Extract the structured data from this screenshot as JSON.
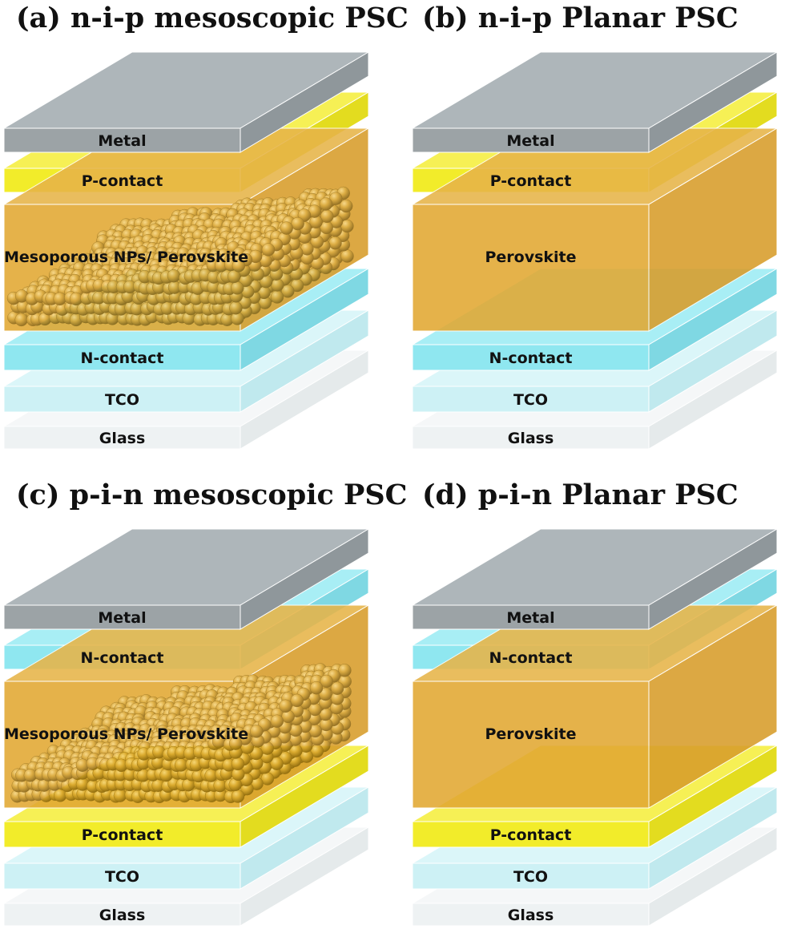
{
  "panels": [
    {
      "id": "a",
      "title": "(a) n-i-p mesoscopic PSC",
      "mesoporous": true,
      "layers": [
        {
          "label": "Metal",
          "kind": "metal"
        },
        {
          "label": "P-contact",
          "kind": "p"
        },
        {
          "label": "Mesoporous NPs/ Perovskite",
          "kind": "perovskite"
        },
        {
          "label": "N-contact",
          "kind": "n"
        },
        {
          "label": "TCO",
          "kind": "tco"
        },
        {
          "label": "Glass",
          "kind": "glass"
        }
      ]
    },
    {
      "id": "b",
      "title": "(b) n-i-p Planar PSC",
      "mesoporous": false,
      "layers": [
        {
          "label": "Metal",
          "kind": "metal"
        },
        {
          "label": "P-contact",
          "kind": "p"
        },
        {
          "label": "Perovskite",
          "kind": "perovskite"
        },
        {
          "label": "N-contact",
          "kind": "n"
        },
        {
          "label": "TCO",
          "kind": "tco"
        },
        {
          "label": "Glass",
          "kind": "glass"
        }
      ]
    },
    {
      "id": "c",
      "title": "(c) p-i-n mesoscopic PSC",
      "mesoporous": true,
      "layers": [
        {
          "label": "Metal",
          "kind": "metal"
        },
        {
          "label": "N-contact",
          "kind": "n"
        },
        {
          "label": "Mesoporous NPs/ Perovskite",
          "kind": "perovskite"
        },
        {
          "label": "P-contact",
          "kind": "p"
        },
        {
          "label": "TCO",
          "kind": "tco"
        },
        {
          "label": "Glass",
          "kind": "glass"
        }
      ]
    },
    {
      "id": "d",
      "title": "(d) p-i-n Planar PSC",
      "mesoporous": false,
      "layers": [
        {
          "label": "Metal",
          "kind": "metal"
        },
        {
          "label": "N-contact",
          "kind": "n"
        },
        {
          "label": "Perovskite",
          "kind": "perovskite"
        },
        {
          "label": "P-contact",
          "kind": "p"
        },
        {
          "label": "TCO",
          "kind": "tco"
        },
        {
          "label": "Glass",
          "kind": "glass"
        }
      ]
    }
  ],
  "colors": {
    "metal": {
      "front": "#9ca3a6",
      "top": "#aeb6ba",
      "side": "#8f979b"
    },
    "p": {
      "front": "#f2ec2a",
      "top": "#f6f055",
      "side": "#e3dc1f"
    },
    "n": {
      "front": "#8fe7f0",
      "top": "#a8eef5",
      "side": "#7fd8e3"
    },
    "tco": {
      "front": "#cdf1f5",
      "top": "#dbf6f9",
      "side": "#c0e9ee"
    },
    "glass": {
      "front": "#eef2f3",
      "top": "#f5f7f8",
      "side": "#e4e9ea"
    },
    "perovskite": {
      "front": "#e2a832",
      "top": "#e7b448",
      "side": "#d89d2a"
    },
    "particle": "#c28d14"
  }
}
